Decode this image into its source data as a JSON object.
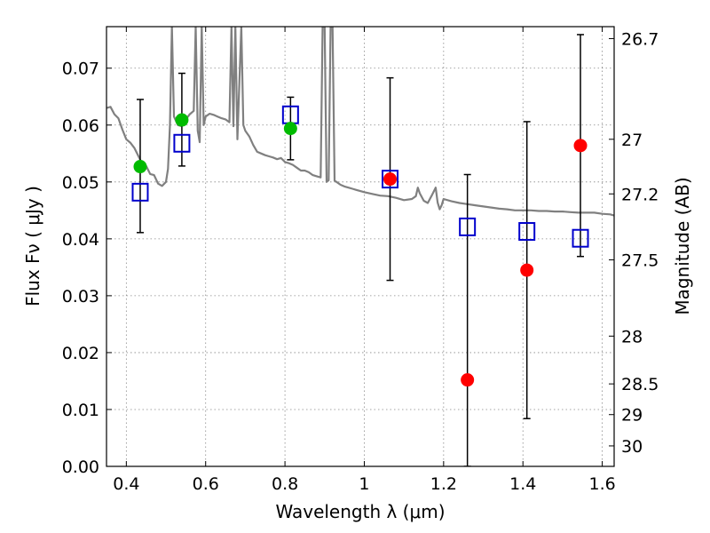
{
  "chart_data": {
    "type": "scatter",
    "xlabel": "Wavelength  λ (μm)",
    "ylabel": "Flux  Fν  ( μJy )",
    "ylabel_right": "Magnitude (AB)",
    "xlim": [
      0.35,
      1.63
    ],
    "ylim": [
      0.0,
      0.0773
    ],
    "x_ticks": [
      0.4,
      0.6,
      0.8,
      1.0,
      1.2,
      1.4,
      1.6
    ],
    "x_tick_labels": [
      "0.4",
      "0.6",
      "0.8",
      "1",
      "1.2",
      "1.4",
      "1.6"
    ],
    "y_ticks": [
      0.0,
      0.01,
      0.02,
      0.03,
      0.04,
      0.05,
      0.06,
      0.07
    ],
    "y_tick_labels": [
      "0.00",
      "0.01",
      "0.02",
      "0.03",
      "0.04",
      "0.05",
      "0.06",
      "0.07"
    ],
    "mag_ticks": [
      {
        "label": "26.7",
        "flux": 0.0752
      },
      {
        "label": "27",
        "flux": 0.0575
      },
      {
        "label": "27.2",
        "flux": 0.0479
      },
      {
        "label": "27.5",
        "flux": 0.0363
      },
      {
        "label": "28",
        "flux": 0.0229
      },
      {
        "label": "28.5",
        "flux": 0.0145
      },
      {
        "label": "29",
        "flux": 0.0091
      },
      {
        "label": "30",
        "flux": 0.0036
      }
    ],
    "grid": true,
    "colors": {
      "model_spectrum": "#808080",
      "detected": "#00bb00",
      "nir": "#ff0000",
      "model_flux": "#0000cc",
      "errorbar": "#000000"
    },
    "series": [
      {
        "marker": "square-open",
        "points": [
          {
            "x": 0.435,
            "y": 0.0482
          },
          {
            "x": 0.54,
            "y": 0.0568
          },
          {
            "x": 0.814,
            "y": 0.0618
          },
          {
            "x": 1.065,
            "y": 0.0505
          },
          {
            "x": 1.26,
            "y": 0.0421
          },
          {
            "x": 1.41,
            "y": 0.0413
          },
          {
            "x": 1.545,
            "y": 0.0401
          }
        ]
      },
      {
        "marker": "circle",
        "points": [
          {
            "x": 0.435,
            "y": 0.0527,
            "err_low": 0.0411,
            "err_high": 0.0645
          },
          {
            "x": 0.54,
            "y": 0.0609,
            "err_low": 0.0528,
            "err_high": 0.0691
          },
          {
            "x": 0.814,
            "y": 0.0594,
            "err_low": 0.0539,
            "err_high": 0.0649
          }
        ]
      },
      {
        "marker": "circle",
        "points": [
          {
            "x": 1.065,
            "y": 0.0505,
            "err_low": 0.0327,
            "err_high": 0.0683
          },
          {
            "x": 1.26,
            "y": 0.0152,
            "err_low": 0.0,
            "err_high": 0.0513
          },
          {
            "x": 1.41,
            "y": 0.0345,
            "err_low": 0.0084,
            "err_high": 0.0606
          },
          {
            "x": 1.545,
            "y": 0.0564,
            "err_low": 0.0369,
            "err_high": 0.0759
          }
        ]
      },
      {
        "type": "line",
        "points": [
          [
            0.35,
            0.063
          ],
          [
            0.36,
            0.0632
          ],
          [
            0.37,
            0.0619
          ],
          [
            0.38,
            0.0612
          ],
          [
            0.39,
            0.0592
          ],
          [
            0.4,
            0.0575
          ],
          [
            0.41,
            0.0569
          ],
          [
            0.42,
            0.056
          ],
          [
            0.43,
            0.0546
          ],
          [
            0.44,
            0.0532
          ],
          [
            0.45,
            0.0528
          ],
          [
            0.46,
            0.0514
          ],
          [
            0.47,
            0.0512
          ],
          [
            0.48,
            0.0497
          ],
          [
            0.49,
            0.0493
          ],
          [
            0.5,
            0.05
          ],
          [
            0.505,
            0.0523
          ],
          [
            0.51,
            0.06
          ],
          [
            0.515,
            0.0773
          ],
          [
            0.52,
            0.0615
          ],
          [
            0.53,
            0.06
          ],
          [
            0.54,
            0.0598
          ],
          [
            0.55,
            0.061
          ],
          [
            0.56,
            0.0619
          ],
          [
            0.57,
            0.0625
          ],
          [
            0.575,
            0.0773
          ],
          [
            0.58,
            0.059
          ],
          [
            0.585,
            0.057
          ],
          [
            0.59,
            0.0773
          ],
          [
            0.595,
            0.06
          ],
          [
            0.6,
            0.0615
          ],
          [
            0.61,
            0.062
          ],
          [
            0.62,
            0.0618
          ],
          [
            0.63,
            0.0615
          ],
          [
            0.64,
            0.0612
          ],
          [
            0.65,
            0.061
          ],
          [
            0.66,
            0.0605
          ],
          [
            0.665,
            0.0773
          ],
          [
            0.67,
            0.0598
          ],
          [
            0.675,
            0.0773
          ],
          [
            0.68,
            0.0575
          ],
          [
            0.69,
            0.0773
          ],
          [
            0.695,
            0.06
          ],
          [
            0.7,
            0.059
          ],
          [
            0.71,
            0.058
          ],
          [
            0.72,
            0.0565
          ],
          [
            0.73,
            0.0553
          ],
          [
            0.74,
            0.055
          ],
          [
            0.75,
            0.0547
          ],
          [
            0.76,
            0.0545
          ],
          [
            0.77,
            0.0543
          ],
          [
            0.78,
            0.054
          ],
          [
            0.79,
            0.0542
          ],
          [
            0.8,
            0.0535
          ],
          [
            0.81,
            0.0533
          ],
          [
            0.82,
            0.053
          ],
          [
            0.83,
            0.0525
          ],
          [
            0.84,
            0.052
          ],
          [
            0.85,
            0.052
          ],
          [
            0.86,
            0.0517
          ],
          [
            0.87,
            0.0512
          ],
          [
            0.88,
            0.051
          ],
          [
            0.89,
            0.0508
          ],
          [
            0.895,
            0.0773
          ],
          [
            0.9,
            0.0773
          ],
          [
            0.905,
            0.05
          ],
          [
            0.91,
            0.0503
          ],
          [
            0.915,
            0.0773
          ],
          [
            0.92,
            0.0773
          ],
          [
            0.925,
            0.0502
          ],
          [
            0.93,
            0.05
          ],
          [
            0.94,
            0.0495
          ],
          [
            0.95,
            0.0492
          ],
          [
            0.96,
            0.049
          ],
          [
            0.97,
            0.0488
          ],
          [
            0.98,
            0.0486
          ],
          [
            0.99,
            0.0484
          ],
          [
            1.0,
            0.0482
          ],
          [
            1.02,
            0.0479
          ],
          [
            1.04,
            0.0476
          ],
          [
            1.06,
            0.0475
          ],
          [
            1.08,
            0.0472
          ],
          [
            1.1,
            0.0468
          ],
          [
            1.12,
            0.047
          ],
          [
            1.13,
            0.0475
          ],
          [
            1.135,
            0.049
          ],
          [
            1.14,
            0.048
          ],
          [
            1.15,
            0.0467
          ],
          [
            1.16,
            0.0463
          ],
          [
            1.17,
            0.0476
          ],
          [
            1.18,
            0.049
          ],
          [
            1.185,
            0.0464
          ],
          [
            1.19,
            0.0452
          ],
          [
            1.195,
            0.0459
          ],
          [
            1.2,
            0.047
          ],
          [
            1.22,
            0.0466
          ],
          [
            1.24,
            0.0463
          ],
          [
            1.26,
            0.0461
          ],
          [
            1.28,
            0.0459
          ],
          [
            1.3,
            0.0457
          ],
          [
            1.32,
            0.0455
          ],
          [
            1.34,
            0.0453
          ],
          [
            1.36,
            0.0452
          ],
          [
            1.38,
            0.045
          ],
          [
            1.4,
            0.045
          ],
          [
            1.42,
            0.045
          ],
          [
            1.44,
            0.0449
          ],
          [
            1.46,
            0.0449
          ],
          [
            1.48,
            0.0448
          ],
          [
            1.5,
            0.0448
          ],
          [
            1.52,
            0.0447
          ],
          [
            1.54,
            0.0446
          ],
          [
            1.56,
            0.0446
          ],
          [
            1.58,
            0.0446
          ],
          [
            1.6,
            0.0444
          ],
          [
            1.62,
            0.0443
          ],
          [
            1.63,
            0.0441
          ]
        ]
      }
    ]
  }
}
